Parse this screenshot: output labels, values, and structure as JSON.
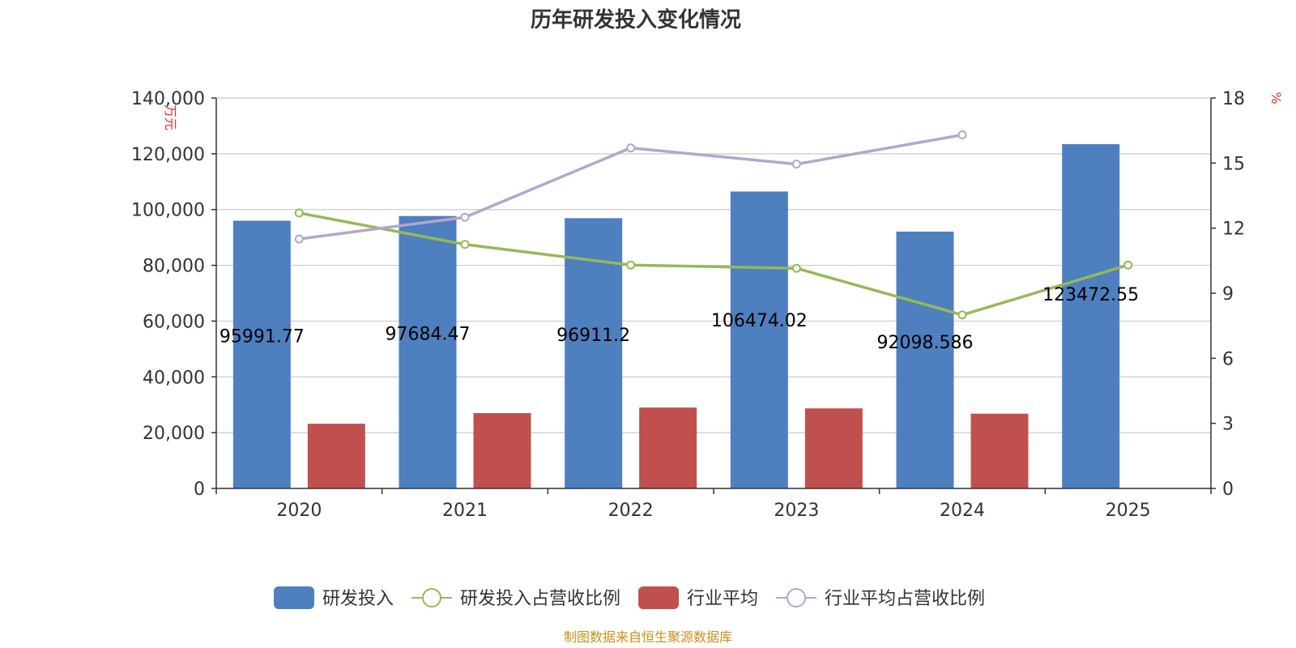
{
  "chart_data": {
    "type": "bar",
    "title": "历年研发投入变化情况",
    "categories": [
      "2020",
      "2021",
      "2022",
      "2023",
      "2024",
      "2025"
    ],
    "y_left": {
      "label": "万元",
      "ylim": [
        0,
        140000
      ],
      "ticks": [
        "0",
        "20,000",
        "40,000",
        "60,000",
        "80,000",
        "100,000",
        "120,000",
        "140,000"
      ]
    },
    "y_right": {
      "label": "%",
      "ylim": [
        0,
        18
      ],
      "ticks": [
        "0",
        "3",
        "6",
        "9",
        "12",
        "15",
        "18"
      ]
    },
    "series": [
      {
        "name": "研发投入",
        "type": "bar",
        "axis": "left",
        "color": "#4e7fbf",
        "values": [
          95991.77,
          97684.47,
          96911.2,
          106474.02,
          92098.586,
          123472.55
        ],
        "labels": [
          "95991.77",
          "97684.47",
          "96911.2",
          "106474.02",
          "92098.586",
          "123472.55"
        ]
      },
      {
        "name": "研发投入占营收比例",
        "type": "line",
        "axis": "right",
        "color": "#96b957",
        "values": [
          12.7,
          11.25,
          10.3,
          10.15,
          8.0,
          10.3
        ]
      },
      {
        "name": "行业平均",
        "type": "bar",
        "axis": "left",
        "color": "#c0504d",
        "values": [
          23200,
          27000,
          29000,
          28700,
          26800,
          null
        ]
      },
      {
        "name": "行业平均占营收比例",
        "type": "line",
        "axis": "right",
        "color": "#b3a6cc",
        "values": [
          11.5,
          12.5,
          15.7,
          14.95,
          16.3,
          null
        ]
      }
    ],
    "legend_position": "bottom",
    "grid": true
  },
  "source": "制图数据来自恒生聚源数据库"
}
